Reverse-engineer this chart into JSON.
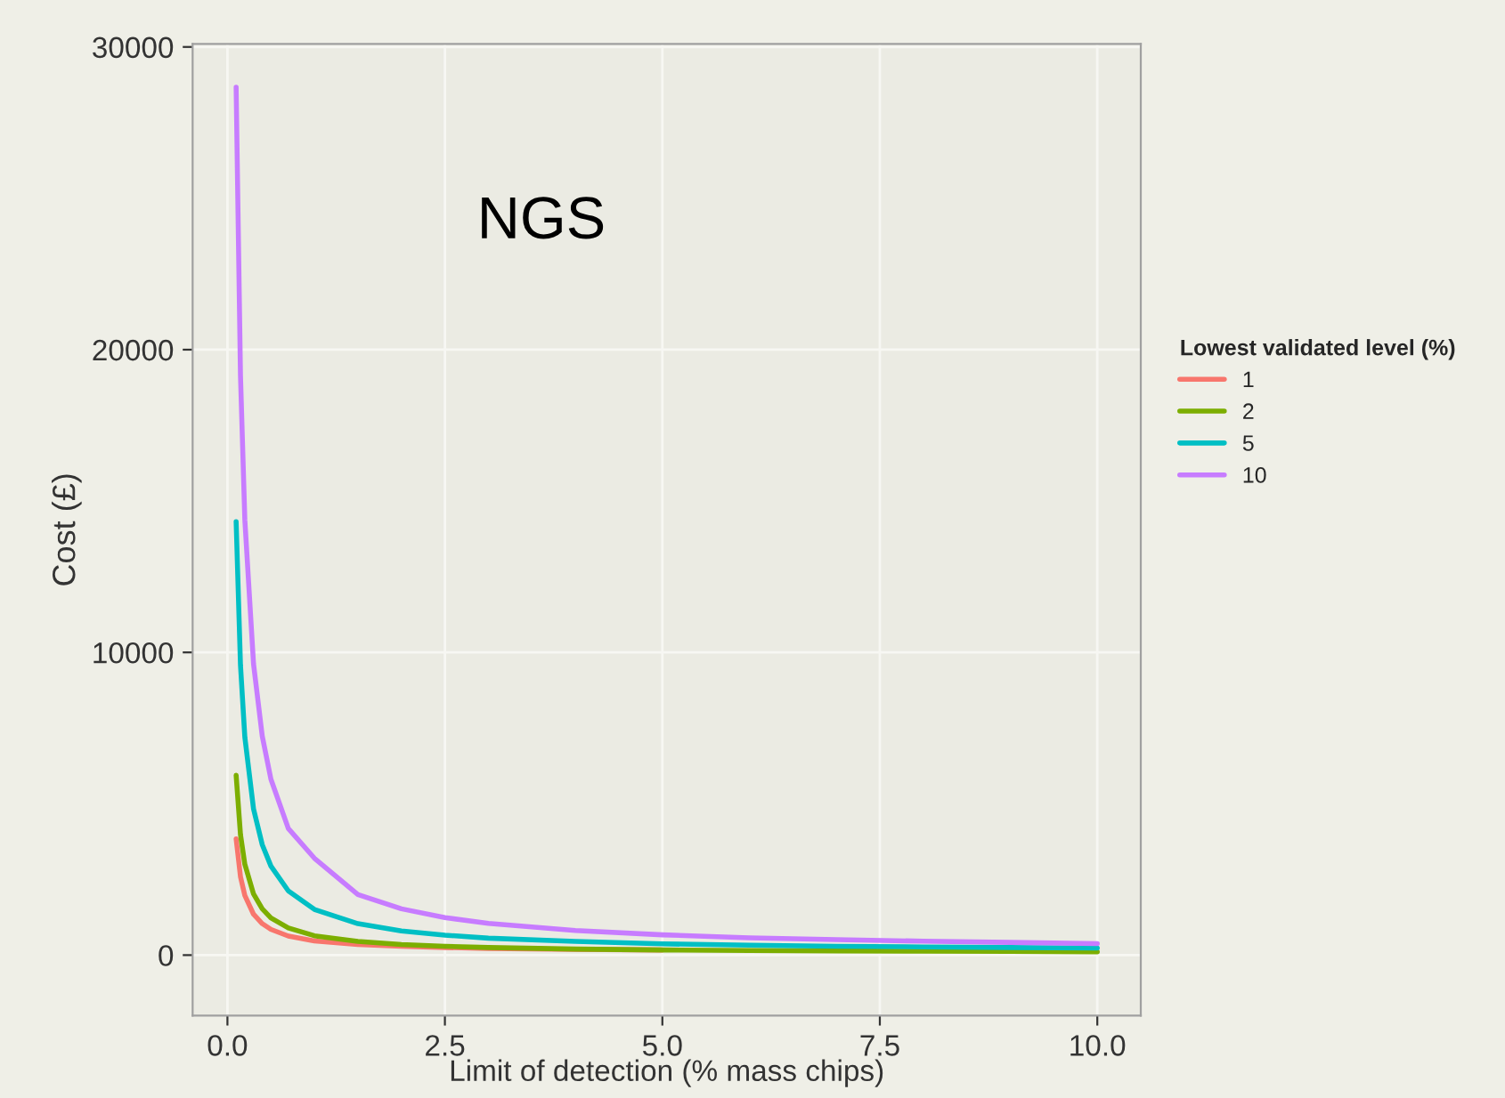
{
  "chart_data": {
    "type": "line",
    "xlabel": "Limit of detection (% mass chips)",
    "ylabel": "Cost (£)",
    "legend_title": "Lowest validated level (%)",
    "legend": "right",
    "grid": true,
    "marker": "none",
    "line_style": "solid",
    "annotations": [
      "NGS"
    ],
    "x": [
      0.1,
      0.15,
      0.2,
      0.3,
      0.4,
      0.5,
      0.7,
      1,
      1.5,
      2,
      2.5,
      3,
      4,
      5,
      6,
      7,
      8,
      9,
      10
    ],
    "xlim": [
      -0.4,
      10.5
    ],
    "xticks": [
      {
        "value": 0,
        "label": "0.0"
      },
      {
        "value": 2.5,
        "label": "2.5"
      },
      {
        "value": 5,
        "label": "5.0"
      },
      {
        "value": 7.5,
        "label": "7.5"
      },
      {
        "value": 10,
        "label": "10.0"
      }
    ],
    "ylim": [
      -2000,
      30100
    ],
    "yticks": [
      0,
      10000,
      20000,
      30000
    ],
    "series": [
      {
        "name": "1",
        "color": "#f8766d",
        "values": [
          3840,
          2590,
          1970,
          1350,
          1040,
          850,
          630,
          470,
          350,
          290,
          250,
          220,
          190,
          170,
          null,
          null,
          null,
          null,
          null
        ]
      },
      {
        "name": "2",
        "color": "#7cae00",
        "values": [
          5940,
          3980,
          3000,
          2020,
          1530,
          1230,
          900,
          640,
          450,
          350,
          290,
          250,
          200,
          170,
          150,
          140,
          130,
          120,
          110
        ]
      },
      {
        "name": "5",
        "color": "#00bfc4",
        "values": [
          14320,
          9580,
          7200,
          4830,
          3650,
          2940,
          2120,
          1510,
          1040,
          800,
          660,
          560,
          450,
          370,
          330,
          290,
          270,
          250,
          230
        ]
      },
      {
        "name": "10",
        "color": "#c77cff",
        "values": [
          28670,
          19140,
          14380,
          9620,
          7240,
          5810,
          4180,
          3200,
          2000,
          1530,
          1240,
          1050,
          810,
          670,
          570,
          510,
          460,
          420,
          380
        ]
      }
    ]
  }
}
